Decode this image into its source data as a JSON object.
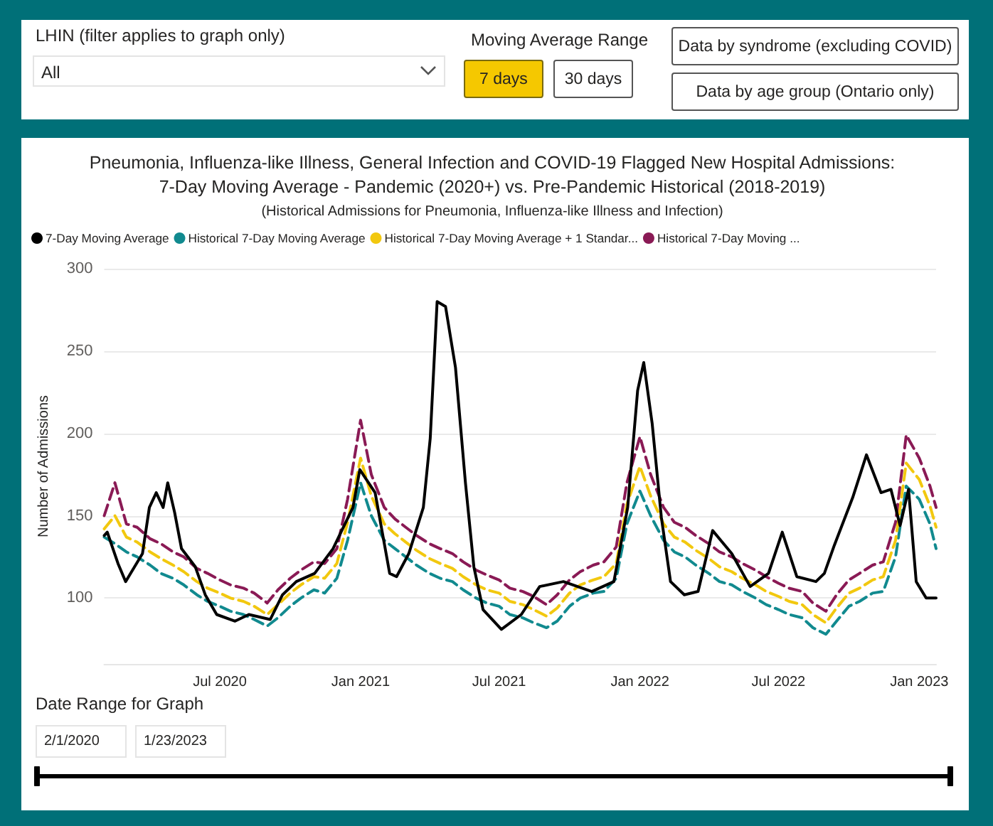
{
  "chart_data": {
    "type": "line",
    "title": "Pneumonia, Influenza-like Illness, General Infection and COVID-19 Flagged New Hospital Admissions:\n7-Day Moving Average - Pandemic (2020+) vs. Pre-Pandemic Historical (2018-2019)",
    "subtitle": "(Historical Admissions for Pneumonia, Influenza-like Illness and Infection)",
    "ylabel": "Number of Admissions",
    "annotations": [
      "LHIN (filter applies to graph only)",
      "All",
      "Moving Average Range",
      "7 days",
      "30 days",
      "Data by syndrome (excluding COVID)",
      "Data by age group (Ontario only)",
      "Date Range for Graph",
      "2/1/2020",
      "1/23/2023"
    ],
    "x": [
      "2020-02-01",
      "2020-02-15",
      "2020-03-01",
      "2020-03-15",
      "2020-04-01",
      "2020-04-15",
      "2020-05-01",
      "2020-05-15",
      "2020-06-01",
      "2020-06-15",
      "2020-07-01",
      "2020-07-15",
      "2020-08-01",
      "2020-08-15",
      "2020-09-01",
      "2020-09-15",
      "2020-10-01",
      "2020-10-15",
      "2020-11-01",
      "2020-11-15",
      "2020-12-01",
      "2020-12-15",
      "2021-01-01",
      "2021-01-15",
      "2021-02-01",
      "2021-02-15",
      "2021-03-01",
      "2021-03-15",
      "2021-04-01",
      "2021-04-15",
      "2021-05-01",
      "2021-05-15",
      "2021-06-01",
      "2021-06-15",
      "2021-07-01",
      "2021-07-15",
      "2021-08-01",
      "2021-08-15",
      "2021-09-01",
      "2021-09-15",
      "2021-10-01",
      "2021-10-15",
      "2021-11-01",
      "2021-11-15",
      "2021-12-01",
      "2021-12-15",
      "2022-01-01",
      "2022-01-15",
      "2022-02-01",
      "2022-02-15",
      "2022-03-01",
      "2022-03-15",
      "2022-04-01",
      "2022-04-15",
      "2022-05-01",
      "2022-05-15",
      "2022-06-01",
      "2022-06-15",
      "2022-07-01",
      "2022-07-15",
      "2022-08-01",
      "2022-08-15",
      "2022-09-01",
      "2022-09-15",
      "2022-10-01",
      "2022-10-15",
      "2022-11-01",
      "2022-11-15",
      "2022-12-01",
      "2022-12-15",
      "2023-01-01",
      "2023-01-15",
      "2023-01-23"
    ],
    "series": [
      {
        "name": "7-Day Moving Average",
        "color": "#000000",
        "line_style": "solid",
        "x": [
          "2020-02-01",
          "2020-02-05",
          "2020-02-19",
          "2020-02-29",
          "2020-03-22",
          "2020-03-31",
          "2020-04-09",
          "2020-04-18",
          "2020-04-24",
          "2020-05-03",
          "2020-05-12",
          "2020-05-30",
          "2020-06-12",
          "2020-06-27",
          "2020-07-21",
          "2020-08-08",
          "2020-09-05",
          "2020-09-21",
          "2020-10-09",
          "2020-11-02",
          "2020-11-26",
          "2020-12-22",
          "2020-12-31",
          "2021-01-20",
          "2021-02-08",
          "2021-02-17",
          "2021-03-05",
          "2021-03-24",
          "2021-04-02",
          "2021-04-11",
          "2021-04-22",
          "2021-05-05",
          "2021-05-18",
          "2021-05-29",
          "2021-06-10",
          "2021-07-04",
          "2021-07-30",
          "2021-08-23",
          "2021-09-23",
          "2021-10-30",
          "2021-11-28",
          "2021-12-16",
          "2021-12-29",
          "2022-01-06",
          "2022-01-17",
          "2022-01-29",
          "2022-02-10",
          "2022-02-28",
          "2022-03-18",
          "2022-04-06",
          "2022-05-01",
          "2022-05-25",
          "2022-06-18",
          "2022-07-06",
          "2022-07-25",
          "2022-08-19",
          "2022-08-30",
          "2022-09-12",
          "2022-10-06",
          "2022-10-24",
          "2022-11-12",
          "2022-11-25",
          "2022-12-07",
          "2022-12-18",
          "2022-12-28",
          "2023-01-10",
          "2023-01-23"
        ],
        "values": [
          138,
          140,
          121,
          110,
          127,
          155,
          164,
          155,
          170,
          152,
          130,
          119,
          102,
          90,
          86,
          90,
          87,
          102,
          110,
          115,
          130,
          155,
          178,
          164,
          115,
          113,
          127,
          155,
          197,
          280,
          277,
          240,
          170,
          119,
          93,
          81,
          90,
          107,
          110,
          104,
          110,
          155,
          226,
          243,
          206,
          149,
          110,
          102,
          104,
          141,
          127,
          107,
          115,
          140,
          113,
          110,
          115,
          132,
          161,
          187,
          164,
          166,
          144,
          166,
          110,
          100,
          100
        ]
      },
      {
        "name": "Historical 7-Day Moving Average",
        "color": "#118a8f",
        "line_style": "dashed",
        "values": [
          137,
          133,
          128,
          125,
          120,
          115,
          112,
          108,
          102,
          98,
          95,
          92,
          90,
          87,
          83,
          88,
          95,
          100,
          105,
          103,
          112,
          135,
          170,
          150,
          135,
          130,
          125,
          120,
          115,
          112,
          110,
          105,
          100,
          97,
          95,
          90,
          88,
          85,
          82,
          86,
          95,
          100,
          103,
          104,
          112,
          145,
          165,
          150,
          135,
          128,
          125,
          120,
          115,
          110,
          108,
          104,
          100,
          96,
          93,
          90,
          88,
          82,
          78,
          86,
          95,
          98,
          103,
          104,
          125,
          168,
          160,
          145,
          130
        ]
      },
      {
        "name": "Historical 7-Day Moving Average + 1 Standar...",
        "color": "#f2c80f",
        "line_style": "dashed",
        "values": [
          142,
          150,
          137,
          134,
          128,
          124,
          120,
          116,
          110,
          106,
          103,
          100,
          98,
          95,
          90,
          96,
          103,
          108,
          113,
          112,
          121,
          146,
          185,
          162,
          145,
          139,
          134,
          129,
          124,
          121,
          118,
          113,
          108,
          105,
          103,
          98,
          96,
          93,
          89,
          94,
          103,
          108,
          111,
          113,
          121,
          157,
          180,
          162,
          145,
          137,
          134,
          129,
          124,
          119,
          116,
          112,
          108,
          104,
          101,
          98,
          96,
          90,
          85,
          94,
          103,
          106,
          111,
          113,
          135,
          182,
          172,
          156,
          143
        ]
      },
      {
        "name": "Historical 7-Day Moving ...",
        "color": "#8a1a55",
        "line_style": "dashed",
        "values": [
          150,
          170,
          145,
          143,
          136,
          133,
          128,
          125,
          118,
          115,
          111,
          108,
          106,
          103,
          97,
          105,
          112,
          117,
          122,
          121,
          130,
          160,
          208,
          175,
          155,
          148,
          143,
          138,
          133,
          130,
          127,
          122,
          117,
          114,
          111,
          106,
          104,
          101,
          96,
          102,
          111,
          116,
          120,
          122,
          131,
          170,
          198,
          175,
          155,
          146,
          143,
          138,
          133,
          128,
          125,
          121,
          117,
          113,
          109,
          106,
          104,
          97,
          92,
          102,
          111,
          115,
          120,
          122,
          146,
          199,
          185,
          168,
          155
        ]
      }
    ],
    "xlim": [
      "2020-02-01",
      "2023-01-23"
    ],
    "xticks": [
      {
        "value": "2020-07-01",
        "label": "Jul 2020"
      },
      {
        "value": "2021-01-01",
        "label": "Jan 2021"
      },
      {
        "value": "2021-07-01",
        "label": "Jul 2021"
      },
      {
        "value": "2022-01-01",
        "label": "Jan 2022"
      },
      {
        "value": "2022-07-01",
        "label": "Jul 2022"
      },
      {
        "value": "2023-01-01",
        "label": "Jan 2023"
      }
    ],
    "ylim": [
      60,
      300
    ],
    "yticks": [
      100,
      150,
      200,
      250,
      300
    ],
    "grid": "y",
    "legend": "top left"
  }
}
